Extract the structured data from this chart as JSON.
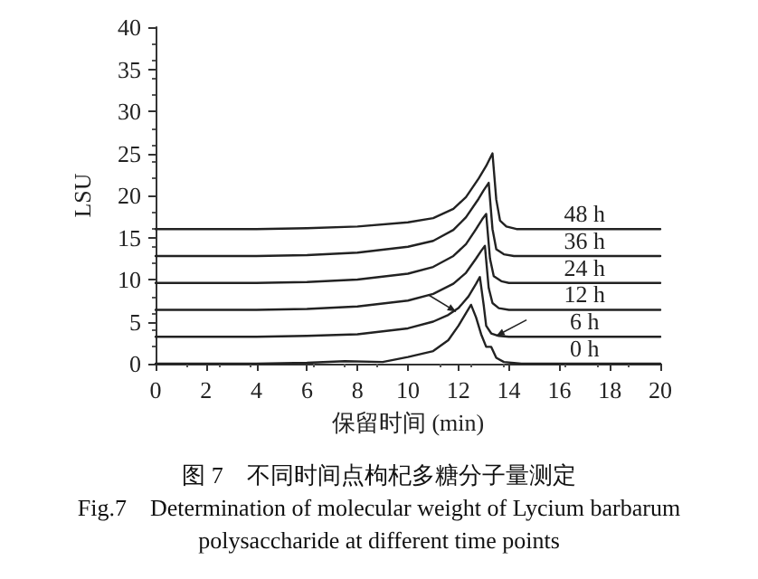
{
  "chart_data": {
    "type": "line",
    "xlabel": "保留时间 (min)",
    "ylabel": "LSU",
    "annotations": [
      "图 7　不同时间点枸杞多糖分子量测定",
      "Fig.7　Determination of molecular weight of Lycium barbarum polysaccharide at different time points"
    ],
    "xlim": [
      0,
      20
    ],
    "xticks": [
      0,
      2,
      4,
      6,
      8,
      10,
      12,
      14,
      16,
      18,
      20
    ],
    "ylim": [
      0,
      40
    ],
    "yticks": [
      0,
      5,
      10,
      15,
      20,
      25,
      30,
      35,
      40
    ],
    "grid": false,
    "marker": "none",
    "line_style": "solid",
    "series": [
      {
        "name": "0 h",
        "color": "#222222",
        "x": [
          0,
          4,
          6,
          7.5,
          9,
          10,
          11,
          11.6,
          12,
          12.3,
          12.5,
          12.7,
          12.9,
          13.1,
          13.3,
          13.5,
          13.8,
          14.5,
          17,
          20
        ],
        "values": [
          0,
          0,
          0.1,
          0.3,
          0.2,
          0.8,
          1.5,
          2.8,
          4.5,
          6,
          7,
          5.5,
          3.5,
          2,
          2,
          0.7,
          0.2,
          0,
          0,
          0
        ]
      },
      {
        "name": "6 h",
        "color": "#222222",
        "x": [
          0,
          4,
          6,
          8,
          10,
          11,
          11.6,
          12,
          12.4,
          12.7,
          12.85,
          13,
          13.1,
          13.3,
          13.6,
          14,
          17,
          20
        ],
        "values": [
          3.2,
          3.2,
          3.3,
          3.5,
          4.2,
          5,
          5.8,
          6.6,
          8,
          9.5,
          10.3,
          7,
          4.5,
          3.6,
          3.3,
          3.2,
          3.2,
          3.2
        ]
      },
      {
        "name": "12 h",
        "color": "#222222",
        "x": [
          0,
          4,
          6,
          8,
          10,
          11,
          11.8,
          12.3,
          12.7,
          12.9,
          13.05,
          13.2,
          13.35,
          13.6,
          14,
          17,
          20
        ],
        "values": [
          6.4,
          6.4,
          6.5,
          6.8,
          7.5,
          8.3,
          9.5,
          10.8,
          12.5,
          13.4,
          14,
          9,
          7.2,
          6.6,
          6.4,
          6.4,
          6.4
        ]
      },
      {
        "name": "24 h",
        "color": "#222222",
        "x": [
          0,
          4,
          6,
          8,
          10,
          11,
          11.8,
          12.3,
          12.7,
          12.95,
          13.1,
          13.25,
          13.4,
          13.7,
          14,
          17,
          20
        ],
        "values": [
          9.6,
          9.6,
          9.7,
          10,
          10.7,
          11.5,
          12.8,
          14.2,
          16,
          17.2,
          17.8,
          12.5,
          10.4,
          9.8,
          9.6,
          9.6,
          9.6
        ]
      },
      {
        "name": "36 h",
        "color": "#222222",
        "x": [
          0,
          4,
          6,
          8,
          10,
          11,
          11.8,
          12.3,
          12.8,
          13,
          13.2,
          13.35,
          13.5,
          13.8,
          14.2,
          17,
          20
        ],
        "values": [
          12.8,
          12.8,
          12.9,
          13.2,
          13.9,
          14.6,
          15.9,
          17.4,
          19.6,
          20.6,
          21.5,
          16,
          13.6,
          13,
          12.8,
          12.8,
          12.8
        ]
      },
      {
        "name": "48 h",
        "color": "#222222",
        "x": [
          0,
          4,
          6,
          8,
          10,
          11,
          11.8,
          12.3,
          12.8,
          13.1,
          13.35,
          13.5,
          13.65,
          13.9,
          14.3,
          17,
          20
        ],
        "values": [
          16,
          16,
          16.1,
          16.3,
          16.8,
          17.3,
          18.4,
          19.8,
          22,
          23.5,
          25,
          19.5,
          17,
          16.3,
          16,
          16,
          16
        ]
      }
    ]
  }
}
